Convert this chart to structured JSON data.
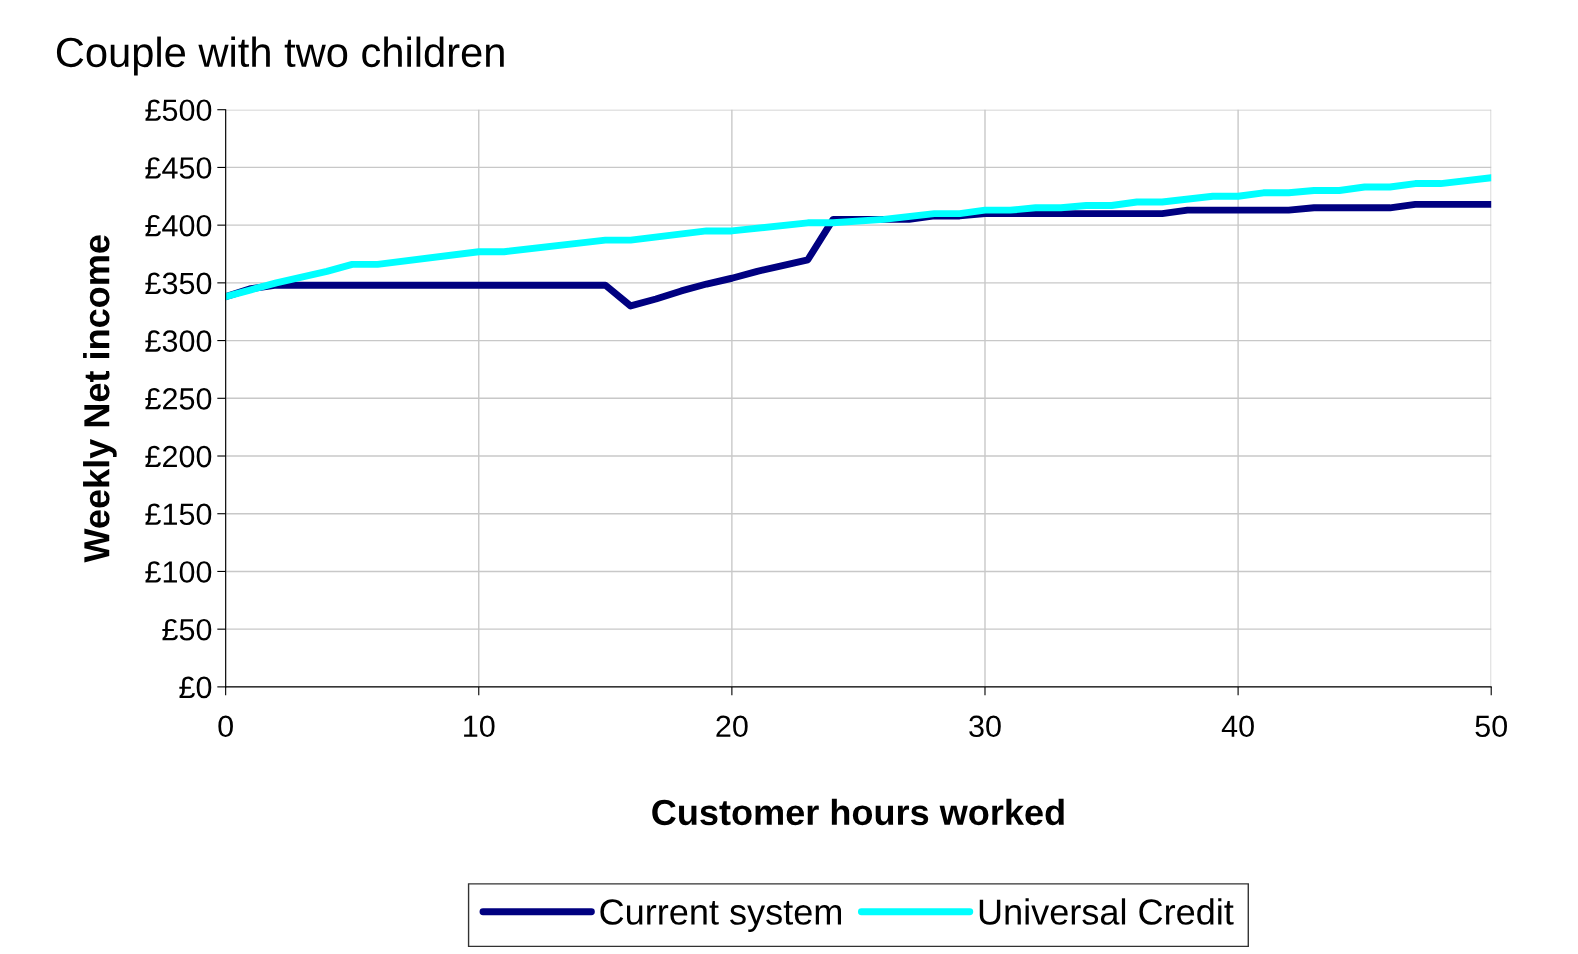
{
  "chart_data": {
    "type": "line",
    "title": "Couple with two children",
    "xlabel": "Customer hours worked",
    "ylabel": "Weekly Net income",
    "xlim": [
      0,
      50
    ],
    "xticks": [
      0,
      10,
      20,
      30,
      40,
      50
    ],
    "ylim": [
      0,
      500
    ],
    "yticks": [
      {
        "value": 0,
        "label": "£0"
      },
      {
        "value": 50,
        "label": "£50"
      },
      {
        "value": 100,
        "label": "£100"
      },
      {
        "value": 150,
        "label": "£150"
      },
      {
        "value": 200,
        "label": "£200"
      },
      {
        "value": 250,
        "label": "£250"
      },
      {
        "value": 300,
        "label": "£300"
      },
      {
        "value": 350,
        "label": "£350"
      },
      {
        "value": 400,
        "label": "£400"
      },
      {
        "value": 450,
        "label": "£450"
      },
      {
        "value": 500,
        "label": "£500"
      }
    ],
    "grid": true,
    "legend": "bottom",
    "marker": "none",
    "line_style": "solid",
    "series": [
      {
        "name": "Current system",
        "color": "#000080",
        "x": [
          0,
          1,
          2,
          15,
          16,
          17,
          18,
          19,
          20,
          21,
          22,
          23,
          24,
          27,
          28,
          29,
          30,
          37,
          38,
          42,
          43,
          46,
          47,
          50
        ],
        "values": [
          338,
          345,
          348,
          348,
          330,
          336,
          343,
          349,
          354,
          360,
          365,
          370,
          405,
          405,
          408,
          408,
          410,
          410,
          413,
          413,
          415,
          415,
          418,
          418
        ]
      },
      {
        "name": "Universal Credit",
        "color": "#00ffff",
        "x": [
          0,
          1,
          2,
          3,
          4,
          5,
          6,
          10,
          11,
          15,
          16,
          19,
          20,
          23,
          24,
          26,
          28,
          29,
          30,
          31,
          32,
          33,
          34,
          35,
          36,
          37,
          39,
          40,
          41,
          42,
          43,
          44,
          45,
          46,
          47,
          48,
          50
        ],
        "values": [
          338,
          344,
          350,
          355,
          360,
          366,
          366,
          377,
          377,
          387,
          387,
          395,
          395,
          402,
          402,
          405,
          410,
          410,
          413,
          413,
          415,
          415,
          417,
          417,
          420,
          420,
          425,
          425,
          428,
          428,
          430,
          430,
          433,
          433,
          436,
          436,
          441
        ]
      }
    ]
  }
}
